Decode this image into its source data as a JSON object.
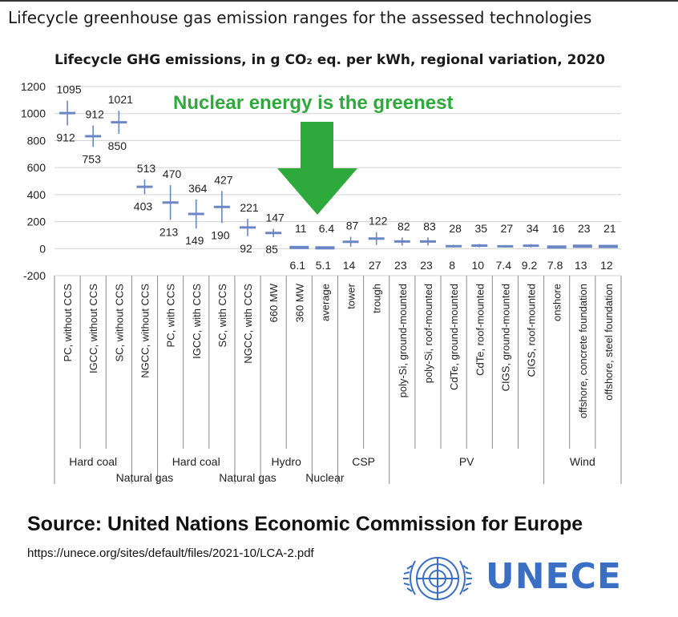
{
  "page_title": "Lifecycle greenhouse gas emission ranges for the assessed technologies",
  "source": "Source: United Nations Economic Commission for Europe",
  "url": "https://unece.org/sites/default/files/2021-10/LCA-2.pdf",
  "brand": "UNECE",
  "colors": {
    "marker": "#6b86c4",
    "annotation": "#2eaa3c",
    "grid": "#d0d0d0",
    "brand": "#3a6fc4"
  },
  "chart_data": {
    "type": "range",
    "title": "Lifecycle GHG emissions, in g CO₂ eq. per kWh, regional variation, 2020",
    "annotation": "Nuclear energy is the greenest",
    "ylim": [
      -200,
      1200
    ],
    "yticks": [
      -200,
      0,
      200,
      400,
      600,
      800,
      1000,
      1200
    ],
    "categories": [
      "PC, without CCS",
      "IGCC, without CCS",
      "SC, without CCS",
      "NGCC, without CCS",
      "PC, with CCS",
      "IGCC, with CCS",
      "SC, with CCS",
      "NGCC, with CCS",
      "660 MW",
      "360 MW",
      "average",
      "tower",
      "trough",
      "poly-Si, ground-mounted",
      "poly-Si, roof-mounted",
      "CdTe, ground-mounted",
      "CdTe, roof-mounted",
      "CIGS, ground-mounted",
      "CIGS, roof-mounted",
      "onshore",
      "offshore, concrete foundation",
      "offshore, steel foundation"
    ],
    "min_labels": [
      "912",
      "753",
      "850",
      "403",
      "213",
      "149",
      "190",
      "92",
      "85",
      "6.1",
      "5.1",
      "14",
      "27",
      "23",
      "23",
      "8",
      "10",
      "7.4",
      "9.2",
      "7.8",
      "13",
      "12"
    ],
    "max_labels": [
      "1095",
      "912",
      "1021",
      "513",
      "470",
      "364",
      "427",
      "221",
      "147",
      "11",
      "6.4",
      "87",
      "122",
      "82",
      "83",
      "28",
      "35",
      "27",
      "34",
      "16",
      "23",
      "21"
    ],
    "mins": [
      912,
      753,
      850,
      403,
      213,
      149,
      190,
      92,
      85,
      6.1,
      5.1,
      14,
      27,
      23,
      23,
      8,
      10,
      7.4,
      9.2,
      7.8,
      13,
      12
    ],
    "maxs": [
      1095,
      912,
      1021,
      513,
      470,
      364,
      427,
      221,
      147,
      11,
      6.4,
      87,
      122,
      82,
      83,
      28,
      35,
      27,
      34,
      16,
      23,
      21
    ],
    "groups": [
      {
        "label": "Hard coal",
        "start": 0,
        "end": 2,
        "row": 0
      },
      {
        "label": "Natural gas",
        "start": 3,
        "end": 3,
        "row": 1
      },
      {
        "label": "Hard coal",
        "start": 4,
        "end": 6,
        "row": 0
      },
      {
        "label": "Natural gas",
        "start": 7,
        "end": 7,
        "row": 1
      },
      {
        "label": "Hydro",
        "start": 8,
        "end": 9,
        "row": 0
      },
      {
        "label": "Nuclear",
        "start": 10,
        "end": 10,
        "row": 1
      },
      {
        "label": "CSP",
        "start": 11,
        "end": 12,
        "row": 0
      },
      {
        "label": "PV",
        "start": 13,
        "end": 18,
        "row": 0
      },
      {
        "label": "Wind",
        "start": 19,
        "end": 21,
        "row": 0
      }
    ]
  }
}
